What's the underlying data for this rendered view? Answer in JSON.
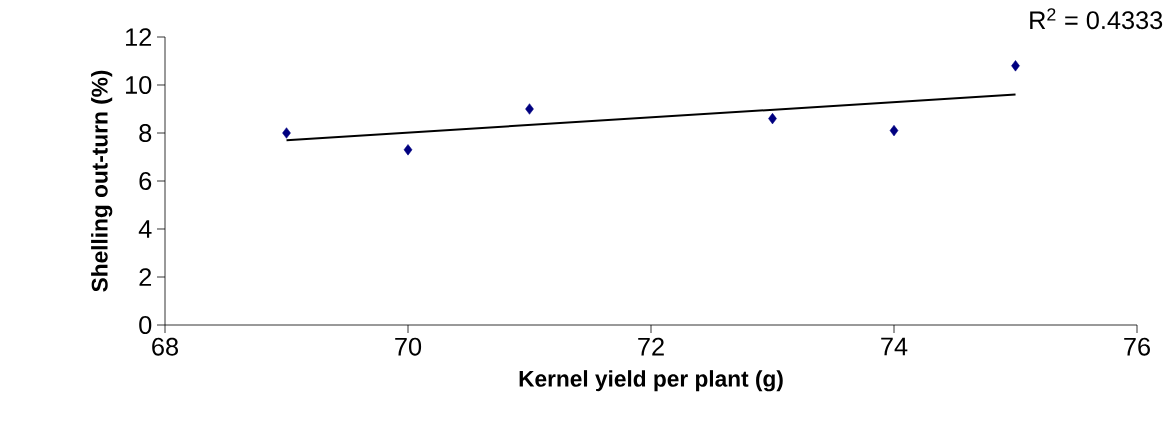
{
  "chart_data": {
    "type": "scatter",
    "xlabel": "Kernel yield per plant (g)",
    "ylabel": "Shelling out-turn (%)",
    "annotations": [
      "R$^{2}$ = 0.4333"
    ],
    "xlim": [
      68,
      76
    ],
    "xticks": [
      68,
      70,
      72,
      74,
      76
    ],
    "ylim": [
      0,
      12
    ],
    "yticks": [
      0,
      2,
      4,
      6,
      8,
      10,
      12
    ],
    "marker": "diamond",
    "series": [
      {
        "color": "#000080",
        "x": [
          69,
          70,
          71,
          73,
          74,
          75
        ],
        "values": [
          8.0,
          7.3,
          9.0,
          8.6,
          8.1,
          10.8
        ]
      },
      {
        "type": "line",
        "color": "#000000",
        "marker": "none",
        "x": [
          69,
          75
        ],
        "values": [
          7.7,
          9.6
        ]
      }
    ]
  }
}
